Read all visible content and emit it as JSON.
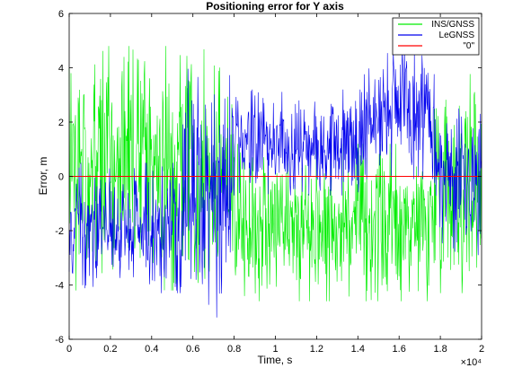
{
  "chart_data": {
    "type": "line",
    "title": "Positioning error for Y axis",
    "xlabel": "Time, s",
    "ylabel": "Error, m",
    "x_exponent_label": "×10⁴",
    "xlim": [
      0,
      2
    ],
    "ylim": [
      -6,
      6
    ],
    "x_ticks": [
      0,
      0.2,
      0.4,
      0.6,
      0.8,
      1,
      1.2,
      1.4,
      1.6,
      1.8,
      2
    ],
    "x_tick_labels": [
      "0",
      "0.2",
      "0.4",
      "0.6",
      "0.8",
      "1",
      "1.2",
      "1.4",
      "1.6",
      "1.8",
      "2"
    ],
    "y_ticks": [
      -6,
      -4,
      -2,
      0,
      2,
      4,
      6
    ],
    "y_tick_labels": [
      "-6",
      "-4",
      "-2",
      "0",
      "2",
      "4",
      "6"
    ],
    "grid": false,
    "legend_position": "top-right",
    "series": [
      {
        "name": "INS/GNSS",
        "color": "#00ee00",
        "segments": [
          {
            "x_range": [
              0,
              0.8
            ],
            "band": [
              -4.2,
              4.8
            ]
          },
          {
            "x_range": [
              0.8,
              1.77
            ],
            "band": [
              -4.6,
              1.2
            ]
          },
          {
            "x_range": [
              1.77,
              2.0
            ],
            "band": [
              -4.3,
              4.1
            ]
          }
        ]
      },
      {
        "name": "LeGNSS",
        "color": "#0000ee",
        "segments": [
          {
            "x_range": [
              0,
              0.55
            ],
            "band": [
              -4.3,
              0.5
            ]
          },
          {
            "x_range": [
              0.55,
              0.79
            ],
            "band": [
              -5.2,
              4.2
            ]
          },
          {
            "x_range": [
              0.79,
              1.43
            ],
            "band": [
              -0.7,
              3.2
            ]
          },
          {
            "x_range": [
              1.43,
              1.77
            ],
            "band": [
              -0.1,
              4.9
            ]
          },
          {
            "x_range": [
              1.77,
              2.0
            ],
            "band": [
              -2.9,
              2.5
            ]
          }
        ]
      },
      {
        "name": "\"0\"",
        "color": "#ff0000",
        "constant_y": 0
      }
    ]
  }
}
